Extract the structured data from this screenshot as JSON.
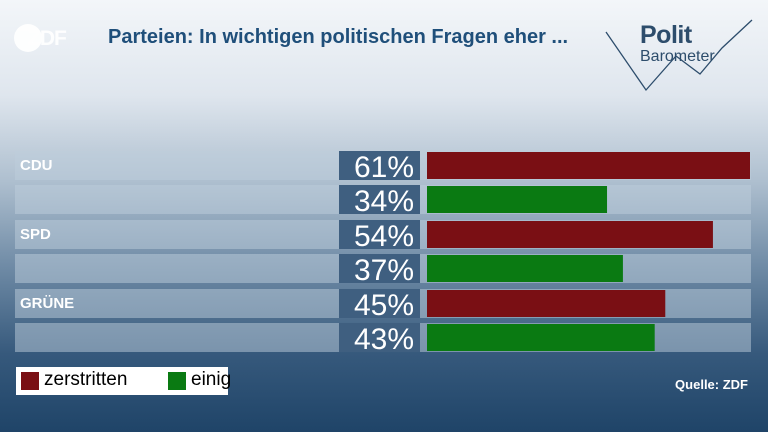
{
  "header": {
    "logo_text": "ZDF",
    "title": "Parteien: In wichtigen politischen Fragen eher ...",
    "brand_line1": "Polit",
    "brand_line2": "Barometer"
  },
  "colors": {
    "zerstritten": "#7a0f14",
    "einig": "#0a7a12"
  },
  "chart_data": {
    "type": "bar",
    "orientation": "horizontal",
    "categories": [
      "CDU",
      "SPD",
      "GRÜNE"
    ],
    "series": [
      {
        "name": "zerstritten",
        "values": [
          61,
          54,
          45
        ],
        "labels": [
          "61%",
          "54%",
          "45%"
        ]
      },
      {
        "name": "einig",
        "values": [
          34,
          37,
          43
        ],
        "labels": [
          "34%",
          "37%",
          "43%"
        ]
      }
    ],
    "xlim": [
      0,
      61
    ],
    "legend": "bottom-left"
  },
  "legend": {
    "items": [
      {
        "label": "zerstritten"
      },
      {
        "label": "einig"
      }
    ]
  },
  "source": "Quelle: ZDF"
}
